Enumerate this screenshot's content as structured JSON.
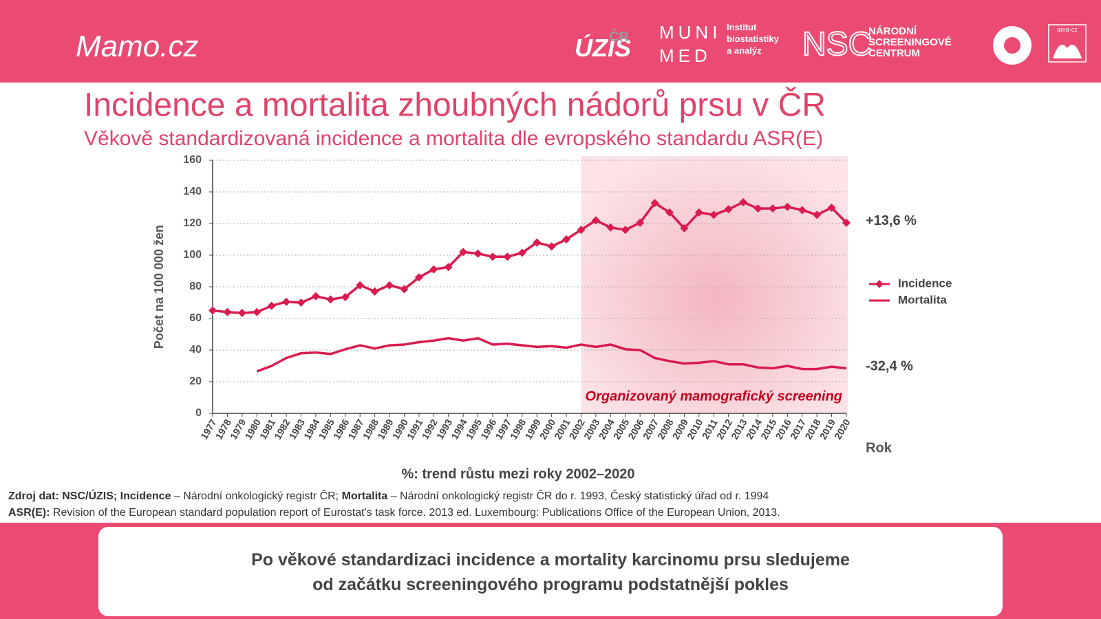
{
  "header": {
    "brand": "Mamo.cz",
    "logos": [
      "ÚZIS",
      "ČR",
      "MUNI",
      "MED",
      "Institut",
      "biostatistiky",
      "a analýz",
      "NSC",
      "NÁRODNÍ",
      "SCREENINGOVÉ",
      "CENTRUM",
      "ama-cz"
    ]
  },
  "chart_data": {
    "type": "line",
    "title": "Incidence a mortalita zhoubných nádorů prsu v ČR",
    "subtitle": "Věkově standardizovaná incidence a mortalita dle evropského standardu ASR(E)",
    "y_label": "Počet  na 100 000 žen",
    "x_label": "Rok",
    "note": "%: trend růstu mezi roky 2002–2020",
    "categories": [
      "1977",
      "1978",
      "1979",
      "1980",
      "1981",
      "1982",
      "1983",
      "1984",
      "1985",
      "1986",
      "1987",
      "1988",
      "1989",
      "1990",
      "1991",
      "1992",
      "1993",
      "1994",
      "1995",
      "1996",
      "1997",
      "1998",
      "1999",
      "2000",
      "2001",
      "2002",
      "2003",
      "2004",
      "2005",
      "2006",
      "2007",
      "2008",
      "2009",
      "2010",
      "2011",
      "2012",
      "2013",
      "2014",
      "2015",
      "2016",
      "2017",
      "2018",
      "2019",
      "2020"
    ],
    "series": [
      {
        "name": "Incidence",
        "color": "#d91c4f",
        "markers": true,
        "end_label": "+13,6 %",
        "values": [
          65,
          64,
          63.5,
          64,
          68,
          70.5,
          70,
          74,
          72,
          73.5,
          81,
          77,
          81,
          78.5,
          86,
          91,
          92.5,
          102,
          101,
          99,
          99,
          101.5,
          108,
          105.5,
          110,
          116,
          122,
          117.5,
          116,
          120.5,
          133,
          127,
          117,
          127,
          125.5,
          129,
          133.5,
          129.5,
          129.5,
          130.5,
          128.5,
          125.5,
          130,
          120.5
        ]
      },
      {
        "name": "Mortalita",
        "color": "#d91c4f",
        "markers": false,
        "end_label": "-32,4 %",
        "values": [
          null,
          null,
          null,
          26.5,
          30,
          35,
          38,
          38.5,
          37.5,
          40.5,
          43,
          41,
          43,
          43.5,
          45,
          46,
          47.5,
          46,
          47.5,
          43.5,
          44,
          43,
          42,
          42.5,
          41.5,
          43.5,
          42,
          43.5,
          40.5,
          40,
          35,
          33,
          31.5,
          32,
          33,
          31,
          31,
          29,
          28.5,
          30,
          28,
          28,
          29.5,
          28.5
        ]
      }
    ],
    "ylim": [
      0,
      160
    ],
    "yticks": [
      0,
      20,
      40,
      60,
      80,
      100,
      120,
      140,
      160
    ],
    "grid": true,
    "legend": "right",
    "shaded": {
      "from": "2002",
      "to": "2020",
      "text": "Organizovaný mamografický screening"
    }
  },
  "source": {
    "line1": [
      "Zdroj dat: NSC/ÚZIS; Incidence",
      " – Národní onkologický registr ČR; ",
      "Mortalita",
      " – Národní onkologický registr ČR do r. 1993, Český statistický úřad od r. 1994"
    ],
    "line2": [
      "ASR(E):",
      " Revision of the European standard population report of Eurostat's task force. 2013 ed. Luxembourg: Publications Office of the European Union, 2013."
    ]
  },
  "conclusion": [
    "Po věkové standardizaci incidence a mortality karcinomu prsu sledujeme",
    "od začátku screeningového programu podstatnější pokles"
  ]
}
